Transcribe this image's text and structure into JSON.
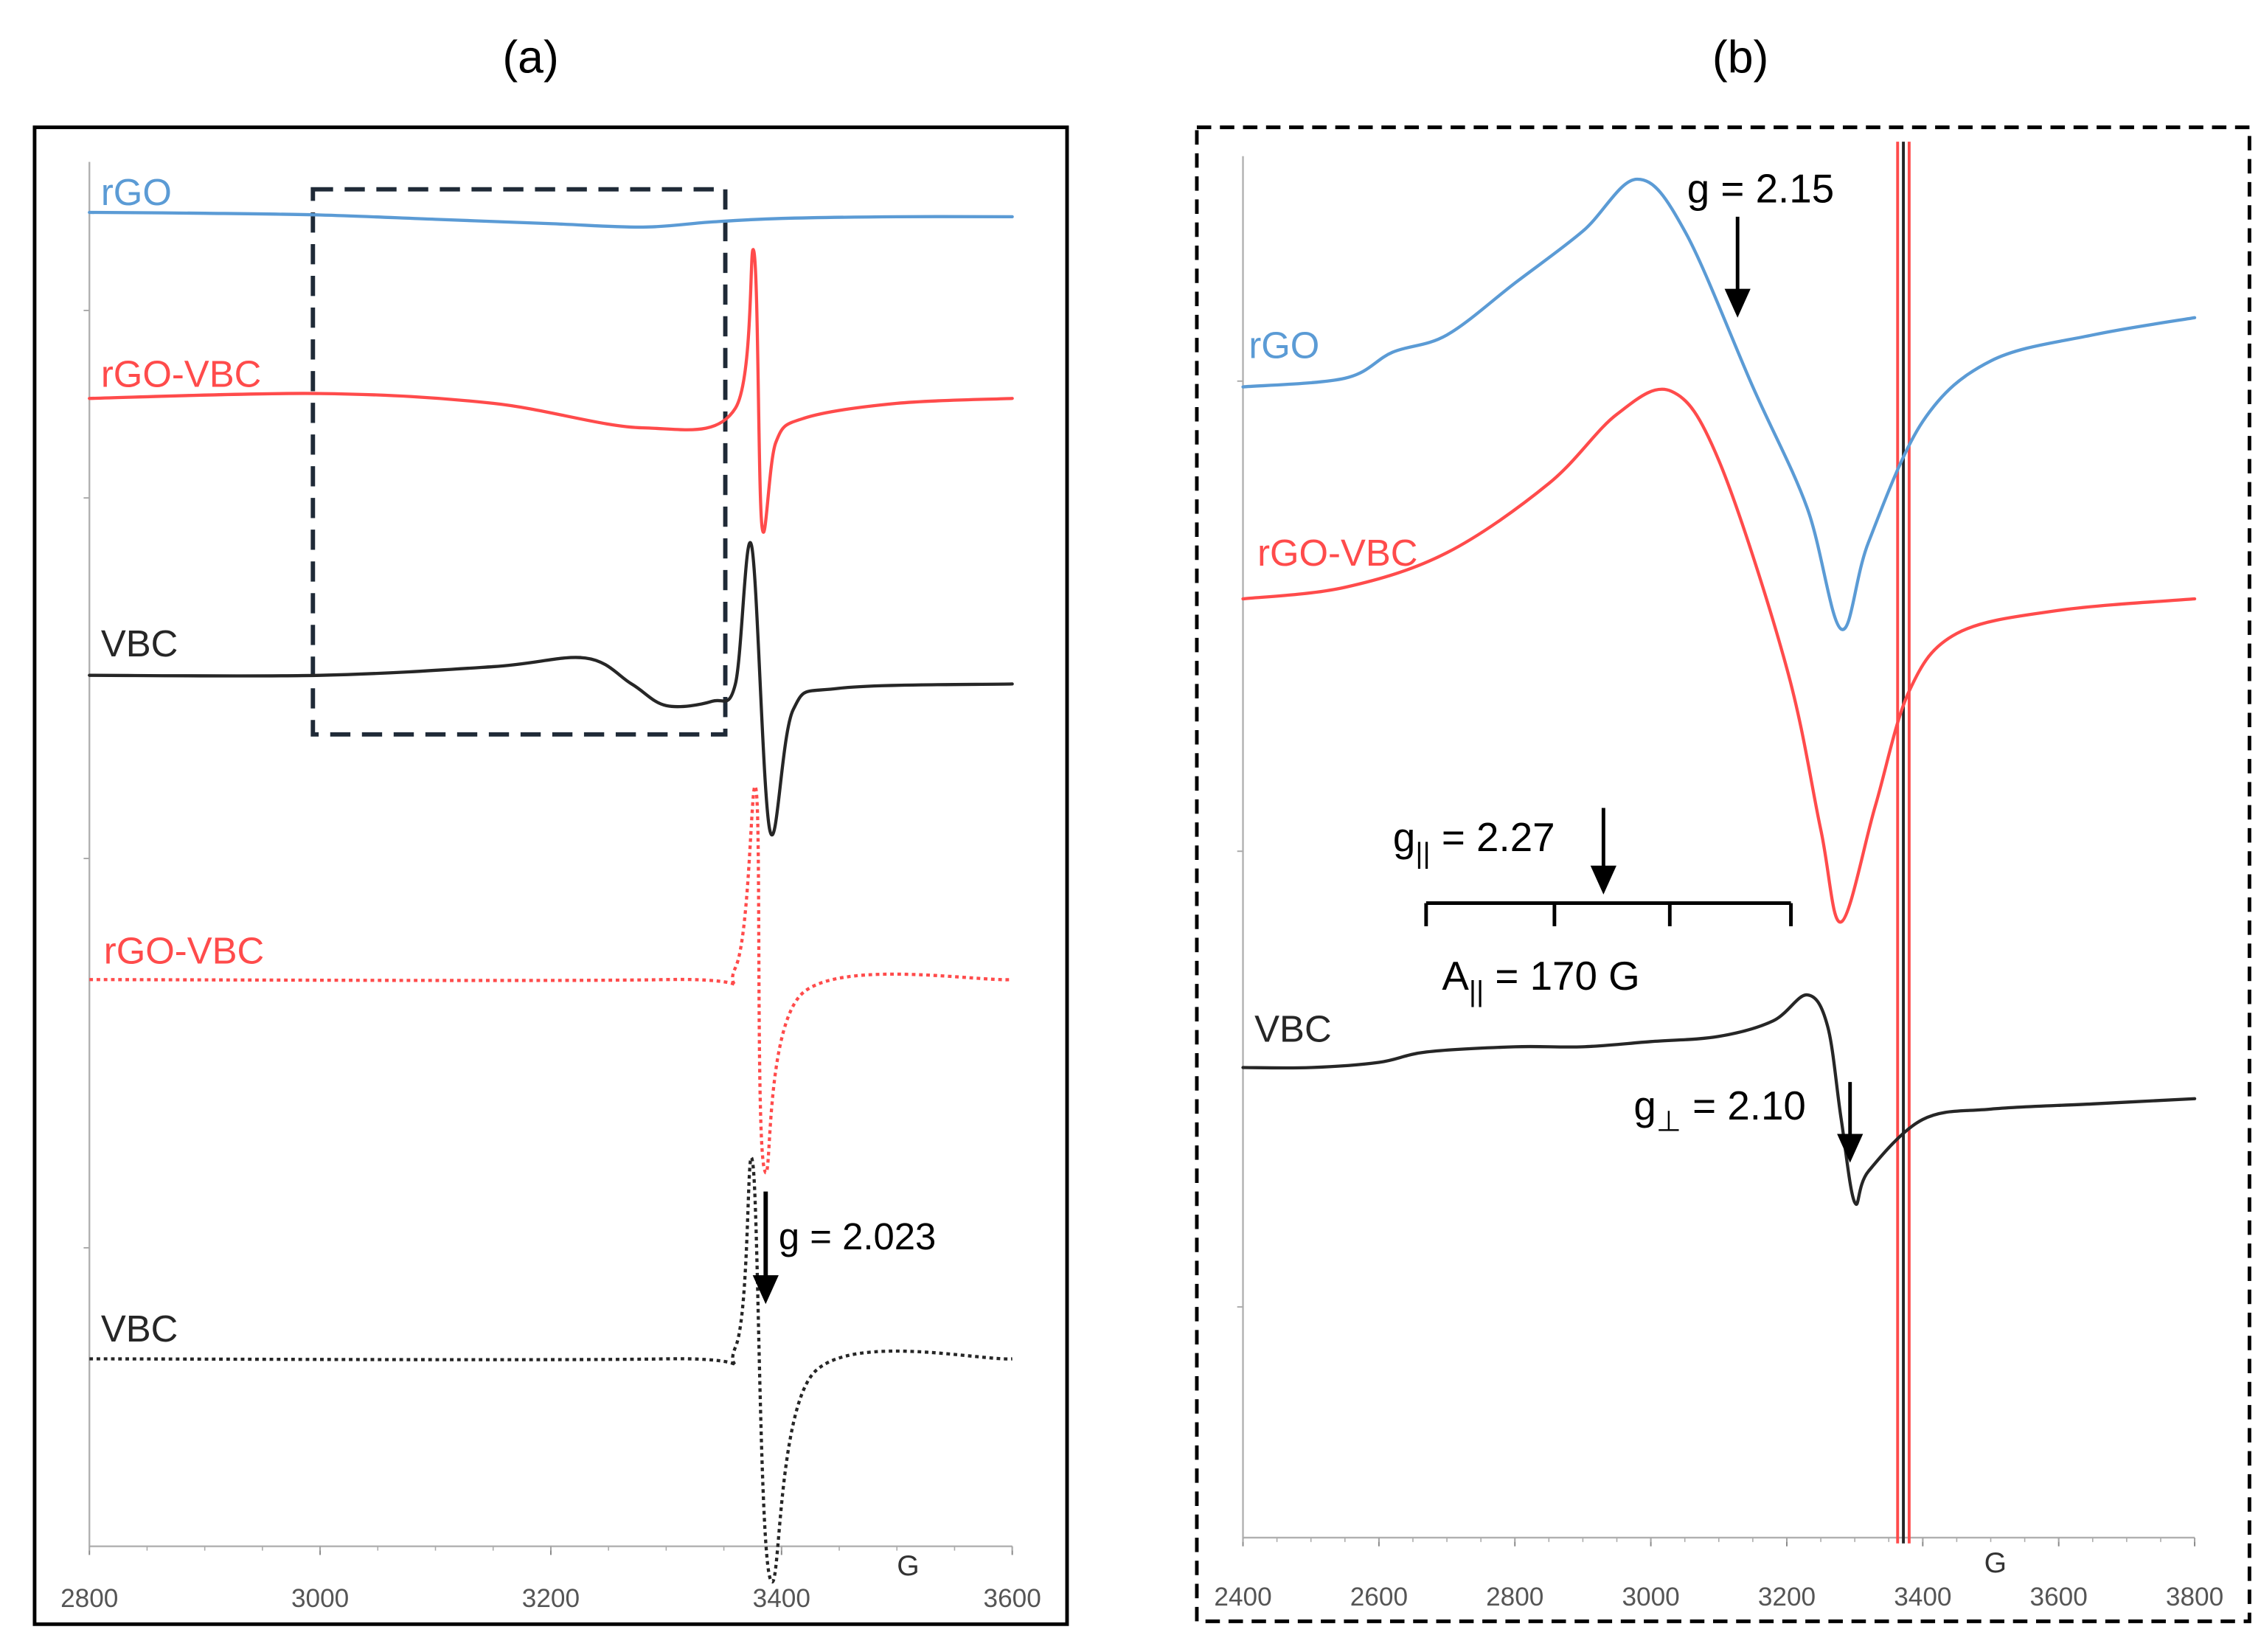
{
  "figure": {
    "panel_a_label": "(a)",
    "panel_b_label": "(b)"
  },
  "chart_data": [
    {
      "type": "line",
      "panel": "(a)",
      "xlabel": "G",
      "xlim": [
        2800,
        3600
      ],
      "x_ticks": [
        2800,
        3000,
        3200,
        3400,
        3600
      ],
      "y_units": "arbitrary (stacked, offset spectra)",
      "series": [
        {
          "name": "rGO",
          "style": "solid",
          "color": "#5B9BD5",
          "points": [
            [
              2800,
              0.05
            ],
            [
              2900,
              0.04
            ],
            [
              3000,
              0.02
            ],
            [
              3100,
              -0.03
            ],
            [
              3200,
              -0.08
            ],
            [
              3280,
              -0.12
            ],
            [
              3340,
              -0.06
            ],
            [
              3400,
              -0.02
            ],
            [
              3500,
              0.0
            ],
            [
              3600,
              0.0
            ]
          ]
        },
        {
          "name": "rGO-VBC",
          "style": "solid",
          "color": "#FF4B4B",
          "points": [
            [
              2800,
              0.0
            ],
            [
              3000,
              0.05
            ],
            [
              3150,
              -0.05
            ],
            [
              3280,
              -0.3
            ],
            [
              3360,
              -0.1
            ],
            [
              3376,
              1.5
            ],
            [
              3383,
              -1.3
            ],
            [
              3395,
              -0.45
            ],
            [
              3420,
              -0.2
            ],
            [
              3500,
              -0.05
            ],
            [
              3600,
              0.0
            ]
          ]
        },
        {
          "name": "VBC",
          "style": "solid",
          "color": "#262626",
          "points": [
            [
              2800,
              0.0
            ],
            [
              3000,
              0.0
            ],
            [
              3150,
              0.1
            ],
            [
              3230,
              0.2
            ],
            [
              3270,
              -0.1
            ],
            [
              3300,
              -0.35
            ],
            [
              3340,
              -0.3
            ],
            [
              3360,
              -0.1
            ],
            [
              3374,
              1.5
            ],
            [
              3390,
              -1.8
            ],
            [
              3410,
              -0.4
            ],
            [
              3450,
              -0.15
            ],
            [
              3600,
              -0.1
            ]
          ]
        },
        {
          "name": "rGO-VBC",
          "style": "dotted",
          "color": "#FF4B4B",
          "points": [
            [
              2800,
              0.0
            ],
            [
              3300,
              0.0
            ],
            [
              3360,
              0.1
            ],
            [
              3378,
              1.6
            ],
            [
              3385,
              -1.6
            ],
            [
              3420,
              -0.1
            ],
            [
              3600,
              0.0
            ]
          ]
        },
        {
          "name": "VBC",
          "style": "dotted",
          "color": "#262626",
          "points": [
            [
              2800,
              0.0
            ],
            [
              3300,
              0.0
            ],
            [
              3360,
              0.1
            ],
            [
              3375,
              1.7
            ],
            [
              3390,
              -1.9
            ],
            [
              3430,
              -0.1
            ],
            [
              3600,
              0.0
            ]
          ]
        }
      ],
      "annotations": [
        {
          "text": "g = 2.023",
          "x": 3390
        }
      ],
      "highlight_box_x_range": [
        3000,
        3350
      ]
    },
    {
      "type": "line",
      "panel": "(b)",
      "xlabel": "G",
      "xlim": [
        2400,
        3800
      ],
      "x_ticks": [
        2400,
        2600,
        2800,
        3000,
        3200,
        3400,
        3600,
        3800
      ],
      "y_units": "arbitrary (stacked, offset spectra)",
      "series": [
        {
          "name": "rGO",
          "style": "solid",
          "color": "#5B9BD5",
          "points": [
            [
              2400,
              0.0
            ],
            [
              2550,
              0.05
            ],
            [
              2620,
              0.2
            ],
            [
              2700,
              0.3
            ],
            [
              2800,
              0.6
            ],
            [
              2900,
              0.9
            ],
            [
              2980,
              1.2
            ],
            [
              3050,
              0.9
            ],
            [
              3150,
              0.0
            ],
            [
              3230,
              -0.7
            ],
            [
              3280,
              -1.4
            ],
            [
              3320,
              -0.9
            ],
            [
              3400,
              -0.2
            ],
            [
              3500,
              0.15
            ],
            [
              3650,
              0.3
            ],
            [
              3800,
              0.4
            ]
          ]
        },
        {
          "name": "rGO-VBC",
          "style": "solid",
          "color": "#FF4B4B",
          "points": [
            [
              2400,
              0.0
            ],
            [
              2550,
              0.05
            ],
            [
              2700,
              0.2
            ],
            [
              2850,
              0.5
            ],
            [
              2950,
              0.8
            ],
            [
              3030,
              0.9
            ],
            [
              3100,
              0.6
            ],
            [
              3200,
              -0.3
            ],
            [
              3250,
              -1.0
            ],
            [
              3280,
              -1.4
            ],
            [
              3330,
              -0.9
            ],
            [
              3380,
              -0.4
            ],
            [
              3450,
              -0.15
            ],
            [
              3600,
              -0.05
            ],
            [
              3800,
              0.0
            ]
          ]
        },
        {
          "name": "VBC",
          "style": "solid",
          "color": "#262626",
          "points": [
            [
              2400,
              0.0
            ],
            [
              2500,
              0.0
            ],
            [
              2600,
              0.05
            ],
            [
              2670,
              0.15
            ],
            [
              2800,
              0.2
            ],
            [
              2900,
              0.2
            ],
            [
              3000,
              0.25
            ],
            [
              3100,
              0.3
            ],
            [
              3180,
              0.45
            ],
            [
              3230,
              0.7
            ],
            [
              3260,
              0.4
            ],
            [
              3280,
              -0.5
            ],
            [
              3300,
              -1.3
            ],
            [
              3320,
              -1.0
            ],
            [
              3400,
              -0.5
            ],
            [
              3500,
              -0.4
            ],
            [
              3650,
              -0.35
            ],
            [
              3800,
              -0.3
            ]
          ]
        }
      ],
      "annotations": [
        {
          "text": "g = 2.15",
          "x": 3130
        },
        {
          "text": "g|| = 2.27",
          "x": 2930
        },
        {
          "text": "A|| = 170 G"
        },
        {
          "text": "g⊥ = 2.10",
          "x": 3300
        }
      ],
      "hyperfine_marks_G": [
        2670,
        2860,
        3030,
        3210
      ]
    }
  ]
}
